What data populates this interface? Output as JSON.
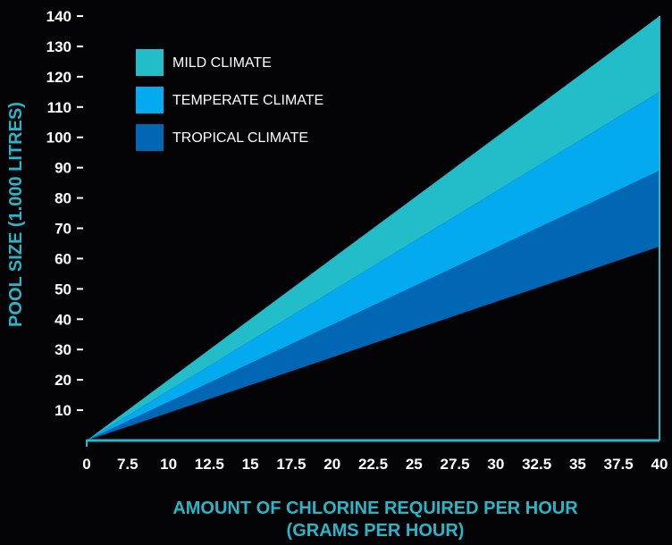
{
  "chart_data": {
    "type": "area",
    "xlabel_lines": [
      "AMOUNT OF CHLORINE REQUIRED PER HOUR",
      "(GRAMS PER HOUR)"
    ],
    "ylabel": "POOL SIZE (1.000 LITRES)",
    "xlim": [
      0,
      40
    ],
    "ylim": [
      0,
      140
    ],
    "x_ticks": [
      "0",
      "7.5",
      "10",
      "12.5",
      "15",
      "17.5",
      "20",
      "22.5",
      "25",
      "27.5",
      "30",
      "32.5",
      "35",
      "37.5",
      "40"
    ],
    "y_ticks": [
      "10",
      "20",
      "30",
      "40",
      "50",
      "60",
      "70",
      "80",
      "90",
      "100",
      "110",
      "120",
      "130",
      "140"
    ],
    "x": [
      0,
      40
    ],
    "series": [
      {
        "name": "MILD CLIMATE",
        "values": [
          0,
          140
        ],
        "color": "#22bdc9"
      },
      {
        "name": "TEMPERATE CLIMATE",
        "values": [
          0,
          115
        ],
        "color": "#03aaef"
      },
      {
        "name": "TROPICAL CLIMATE",
        "values": [
          0,
          89
        ],
        "color": "#0167b4"
      }
    ],
    "lower_bound": {
      "values": [
        0,
        64
      ]
    },
    "axis_color": "#29b6c8",
    "grid": false,
    "legend_position": "top-left"
  }
}
